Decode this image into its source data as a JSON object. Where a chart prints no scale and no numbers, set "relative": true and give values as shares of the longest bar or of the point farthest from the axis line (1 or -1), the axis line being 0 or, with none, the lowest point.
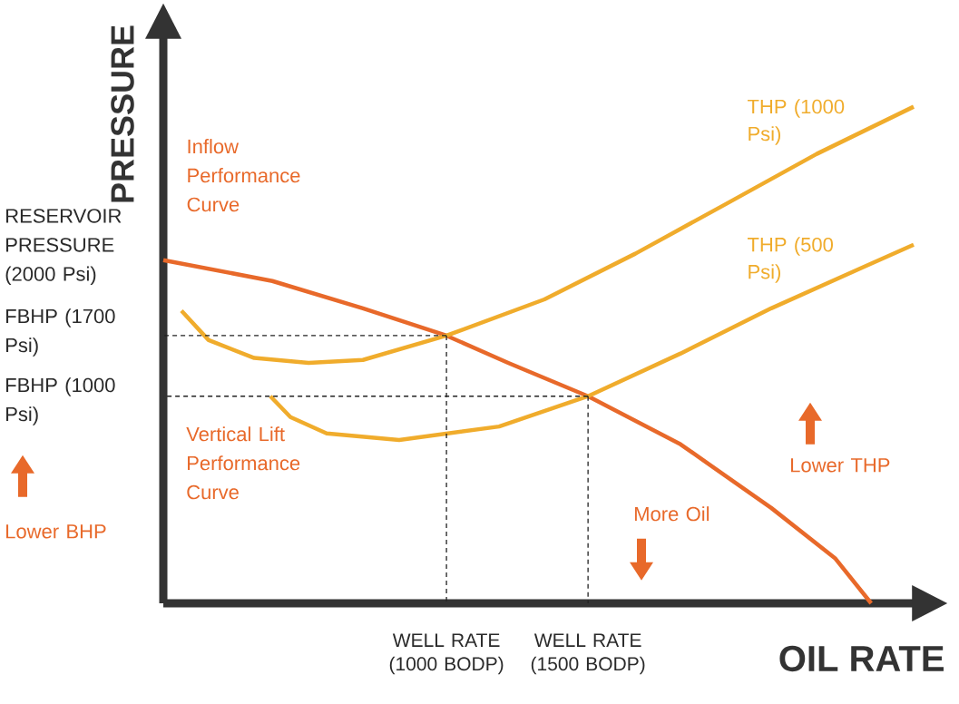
{
  "chart_data": {
    "type": "line",
    "relative": true,
    "xlabel": "OIL RATE",
    "ylabel": "PRESSURE",
    "marker": "none",
    "xlim": [
      0,
      2650
    ],
    "xticks": [
      {
        "value": 1000,
        "label": "WELL RATE (1000 BODP)"
      },
      {
        "value": 1500,
        "label": "WELL RATE (1500 BODP)"
      }
    ],
    "series": [
      {
        "name": "Inflow Performance Curve",
        "color": "#e8692a",
        "x": [
          0,
          385,
          705,
          1000,
          1218,
          1500,
          1827,
          2147,
          2372,
          2500
        ],
        "values": [
          0.691,
          0.649,
          0.594,
          0.539,
          0.484,
          0.417,
          0.32,
          0.192,
          0.091,
          0
        ]
      },
      {
        "name": "THP (1000 Psi)",
        "color": "#f0ac2c",
        "x": [
          64,
          160,
          321,
          513,
          705,
          1000,
          1346,
          1667,
          1987,
          2308,
          2650
        ],
        "values": [
          0.589,
          0.53,
          0.494,
          0.484,
          0.49,
          0.539,
          0.612,
          0.704,
          0.804,
          0.905,
          1.0
        ]
      },
      {
        "name": "THP (500 Psi)",
        "color": "#f0ac2c",
        "x": [
          378,
          449,
          577,
          833,
          1186,
          1500,
          1827,
          2147,
          2468,
          2650
        ],
        "values": [
          0.417,
          0.375,
          0.342,
          0.329,
          0.356,
          0.417,
          0.503,
          0.594,
          0.676,
          0.722
        ]
      },
      {
        "color": "#222222",
        "line_style": "dashed",
        "x": [
          1000,
          0
        ],
        "values": [
          0.539,
          0.539
        ]
      },
      {
        "color": "#222222",
        "line_style": "dashed",
        "x": [
          1500,
          0
        ],
        "values": [
          0.417,
          0.417
        ]
      },
      {
        "color": "#222222",
        "line_style": "dashed",
        "x": [
          1000,
          1000
        ],
        "values": [
          0.539,
          0
        ]
      },
      {
        "color": "#222222",
        "line_style": "dashed",
        "x": [
          1500,
          1500
        ],
        "values": [
          0.417,
          0
        ]
      }
    ],
    "annotations": [
      "RESERVOIR PRESSURE (2000 Psi)",
      "FBHP (1700 Psi)",
      "FBHP (1000 Psi)",
      "Vertical Lift Performance Curve",
      "More Oil",
      "Lower THP",
      "Lower BHP"
    ]
  }
}
